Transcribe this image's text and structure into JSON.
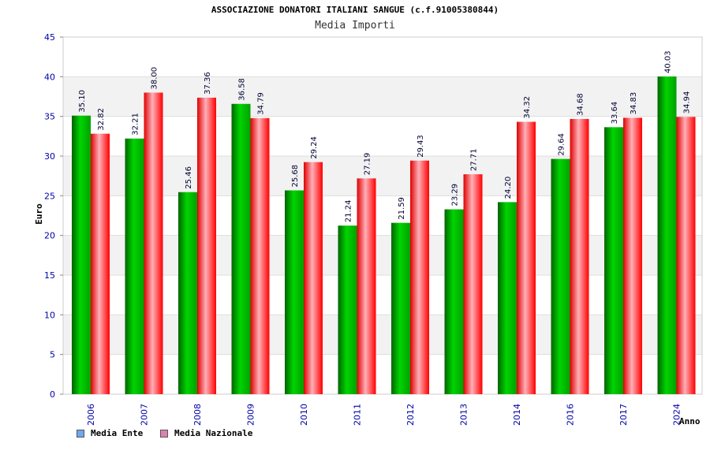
{
  "title": "ASSOCIAZIONE DONATORI ITALIANI SANGUE (c.f.91005380844)",
  "subtitle": "Media Importi",
  "colors": {
    "series1": "#00b400",
    "series2": "#ff0000",
    "legend1": "#6fa8f0",
    "legend2": "#e080b0",
    "axis_text": "#0000aa",
    "band": "#f2f2f2"
  },
  "chart_data": {
    "type": "bar",
    "xlabel": "Anno",
    "ylabel": "Euro",
    "ylim": [
      0,
      45
    ],
    "yticks": [
      0,
      5,
      10,
      15,
      20,
      25,
      30,
      35,
      40,
      45
    ],
    "categories": [
      "2006",
      "2007",
      "2008",
      "2009",
      "2010",
      "2011",
      "2012",
      "2013",
      "2014",
      "2016",
      "2017",
      "2024"
    ],
    "series": [
      {
        "name": "Media Ente",
        "values": [
          35.1,
          32.21,
          25.46,
          36.58,
          25.68,
          21.24,
          21.59,
          23.29,
          24.2,
          29.64,
          33.64,
          40.03
        ]
      },
      {
        "name": "Media Nazionale",
        "values": [
          32.82,
          38.0,
          37.36,
          34.79,
          29.24,
          27.19,
          29.43,
          27.71,
          34.32,
          34.68,
          34.83,
          34.94
        ]
      }
    ],
    "legend_position": "bottom-left",
    "grid": true
  }
}
